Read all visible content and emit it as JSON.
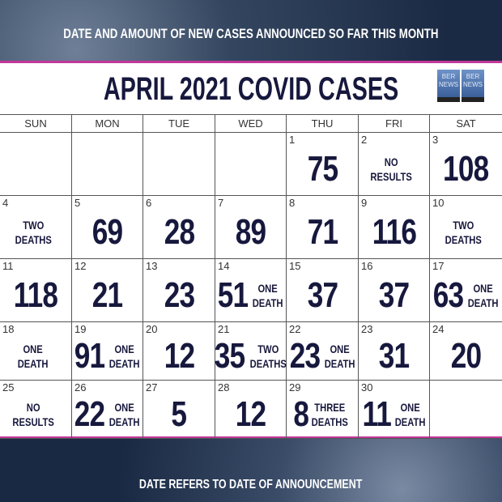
{
  "header": {
    "subtitle": "DATE AND AMOUNT OF NEW CASES ANNOUNCED SO FAR THIS MONTH",
    "title": "APRIL 2021 COVID CASES",
    "logo": "BERNEWS 24/7 News"
  },
  "footer": {
    "note": "DATE REFERS TO DATE OF ANNOUNCEMENT"
  },
  "colors": {
    "accent": "#c2379a",
    "text": "#17183d",
    "background": "#1b2a44"
  },
  "weekdays": [
    "SUN",
    "MON",
    "TUE",
    "WED",
    "THU",
    "FRI",
    "SAT"
  ],
  "days": [
    {
      "date": "",
      "cases": "",
      "note": []
    },
    {
      "date": "",
      "cases": "",
      "note": []
    },
    {
      "date": "",
      "cases": "",
      "note": []
    },
    {
      "date": "",
      "cases": "",
      "note": []
    },
    {
      "date": "1",
      "cases": "75",
      "note": []
    },
    {
      "date": "2",
      "cases": "",
      "note": [
        "NO",
        "RESULTS"
      ]
    },
    {
      "date": "3",
      "cases": "108",
      "note": []
    },
    {
      "date": "4",
      "cases": "",
      "note": [
        "TWO",
        "DEATHS"
      ]
    },
    {
      "date": "5",
      "cases": "69",
      "note": []
    },
    {
      "date": "6",
      "cases": "28",
      "note": []
    },
    {
      "date": "7",
      "cases": "89",
      "note": []
    },
    {
      "date": "8",
      "cases": "71",
      "note": []
    },
    {
      "date": "9",
      "cases": "116",
      "note": []
    },
    {
      "date": "10",
      "cases": "",
      "note": [
        "TWO",
        "DEATHS"
      ]
    },
    {
      "date": "11",
      "cases": "118",
      "note": []
    },
    {
      "date": "12",
      "cases": "21",
      "note": []
    },
    {
      "date": "13",
      "cases": "23",
      "note": []
    },
    {
      "date": "14",
      "cases": "51",
      "note": [
        "ONE",
        "DEATH"
      ]
    },
    {
      "date": "15",
      "cases": "37",
      "note": []
    },
    {
      "date": "16",
      "cases": "37",
      "note": []
    },
    {
      "date": "17",
      "cases": "63",
      "note": [
        "ONE",
        "DEATH"
      ]
    },
    {
      "date": "18",
      "cases": "",
      "note": [
        "ONE",
        "DEATH"
      ]
    },
    {
      "date": "19",
      "cases": "91",
      "note": [
        "ONE",
        "DEATH"
      ]
    },
    {
      "date": "20",
      "cases": "12",
      "note": []
    },
    {
      "date": "21",
      "cases": "35",
      "note": [
        "TWO",
        "DEATHS"
      ]
    },
    {
      "date": "22",
      "cases": "23",
      "note": [
        "ONE",
        "DEATH"
      ]
    },
    {
      "date": "23",
      "cases": "31",
      "note": []
    },
    {
      "date": "24",
      "cases": "20",
      "note": []
    },
    {
      "date": "25",
      "cases": "",
      "note": [
        "NO",
        "RESULTS"
      ]
    },
    {
      "date": "26",
      "cases": "22",
      "note": [
        "ONE",
        "DEATH"
      ]
    },
    {
      "date": "27",
      "cases": "5",
      "note": []
    },
    {
      "date": "28",
      "cases": "12",
      "note": []
    },
    {
      "date": "29",
      "cases": "8",
      "note": [
        "THREE",
        "DEATHS"
      ]
    },
    {
      "date": "30",
      "cases": "11",
      "note": [
        "ONE",
        "DEATH"
      ]
    },
    {
      "date": "",
      "cases": "",
      "note": []
    }
  ]
}
